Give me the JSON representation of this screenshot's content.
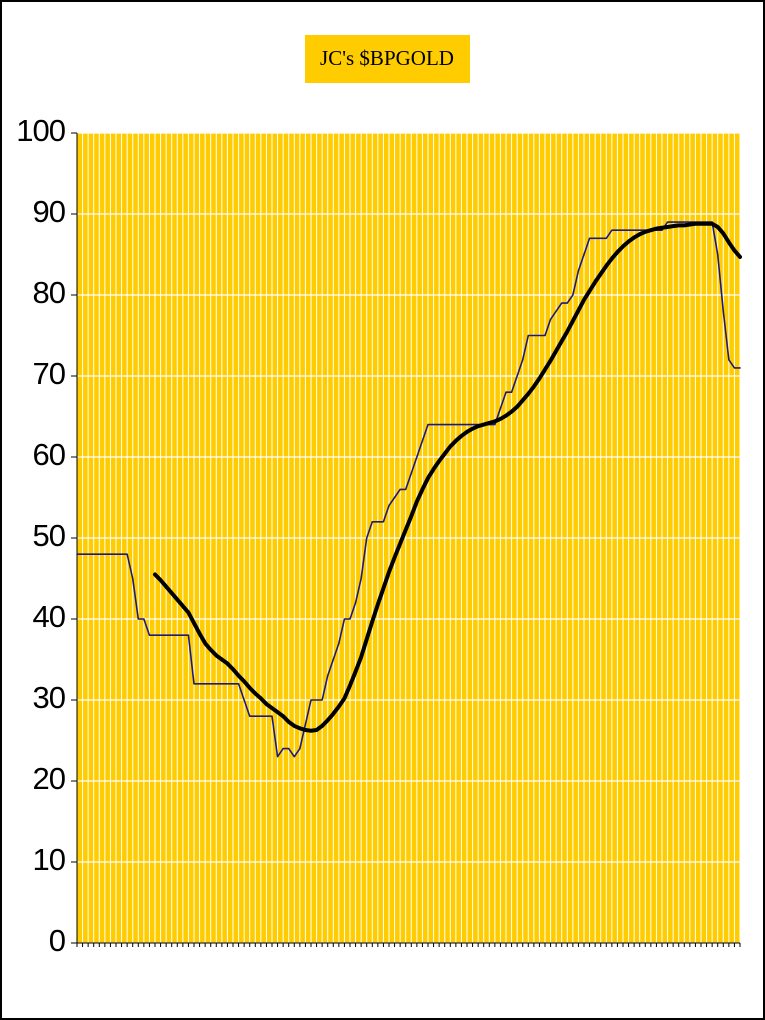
{
  "chart_data": {
    "type": "line",
    "title": "JC's $BPGOLD",
    "categories": [
      null,
      null,
      null,
      null,
      null,
      null,
      null,
      null,
      null,
      null,
      null,
      null,
      null,
      null,
      null,
      null,
      null,
      null,
      null,
      null,
      null,
      null,
      null,
      null,
      null,
      null,
      null,
      null,
      null,
      null,
      null,
      null,
      null,
      null,
      null,
      null,
      null,
      null,
      null,
      null,
      null,
      null,
      null,
      null,
      null,
      null,
      null,
      null,
      null,
      null,
      null,
      null,
      null,
      null,
      null,
      null,
      null,
      null,
      null,
      null,
      null,
      null,
      null,
      null,
      null,
      null,
      null,
      null,
      null,
      null,
      null,
      null,
      null,
      null,
      null,
      null,
      null,
      null,
      null,
      null,
      null,
      null,
      null,
      null,
      null,
      null,
      null,
      null,
      null,
      null,
      null,
      null,
      null,
      null,
      null,
      null,
      null,
      null,
      null,
      null,
      null,
      null,
      null,
      null,
      null,
      null,
      null,
      null,
      null,
      null,
      null,
      null,
      null,
      null,
      null,
      null,
      null,
      null,
      null,
      null
    ],
    "series": [
      {
        "color": "#1a1a80",
        "line_width": 1.6,
        "values": [
          48,
          48,
          48,
          48,
          48,
          48,
          48,
          48,
          48,
          48,
          45,
          40,
          40,
          38,
          38,
          38,
          38,
          38,
          38,
          38,
          38,
          32,
          32,
          32,
          32,
          32,
          32,
          32,
          32,
          32,
          30,
          28,
          28,
          28,
          28,
          28,
          23,
          24,
          24,
          23,
          24,
          27,
          30,
          30,
          30,
          33,
          35,
          37,
          40,
          40,
          42,
          45,
          50,
          52,
          52,
          52,
          54,
          55,
          56,
          56,
          58,
          60,
          62,
          64,
          64,
          64,
          64,
          64,
          64,
          64,
          64,
          64,
          64,
          64,
          64,
          64,
          66,
          68,
          68,
          70,
          72,
          75,
          75,
          75,
          75,
          77,
          78,
          79,
          79,
          80,
          83,
          85,
          87,
          87,
          87,
          87,
          88,
          88,
          88,
          88,
          88,
          88,
          88,
          88,
          88,
          88,
          89,
          89,
          89,
          89,
          89,
          89,
          89,
          89,
          89,
          85,
          78,
          72,
          71,
          71
        ]
      },
      {
        "color": "#000000",
        "line_width": 4,
        "values": [
          null,
          null,
          null,
          null,
          null,
          null,
          null,
          null,
          null,
          null,
          null,
          null,
          null,
          null,
          45.5,
          44.8,
          44,
          43.2,
          42.4,
          41.6,
          40.8,
          39.5,
          38.2,
          37,
          36.2,
          35.5,
          35,
          34.5,
          33.8,
          33,
          32.3,
          31.5,
          30.8,
          30.2,
          29.5,
          29,
          28.5,
          28,
          27.3,
          26.8,
          26.5,
          26.3,
          26.2,
          26.3,
          26.8,
          27.5,
          28.3,
          29.2,
          30.2,
          31.8,
          33.5,
          35.3,
          37.5,
          39.7,
          41.8,
          43.8,
          45.8,
          47.6,
          49.3,
          51,
          52.7,
          54.5,
          56,
          57.4,
          58.5,
          59.5,
          60.4,
          61.3,
          62,
          62.6,
          63.1,
          63.5,
          63.8,
          64,
          64.2,
          64.4,
          64.7,
          65.1,
          65.6,
          66.2,
          67,
          67.8,
          68.7,
          69.7,
          70.8,
          71.9,
          73.1,
          74.3,
          75.5,
          76.8,
          78.1,
          79.4,
          80.5,
          81.6,
          82.6,
          83.6,
          84.5,
          85.3,
          86,
          86.6,
          87.1,
          87.5,
          87.8,
          88,
          88.2,
          88.3,
          88.4,
          88.5,
          88.6,
          88.6,
          88.7,
          88.8,
          88.8,
          88.8,
          88.8,
          88.4,
          87.6,
          86.5,
          85.5,
          84.7
        ]
      }
    ],
    "ylim": [
      0,
      100
    ],
    "yticks": [
      0,
      10,
      20,
      30,
      40,
      50,
      60,
      70,
      80,
      90,
      100
    ],
    "grid": true,
    "background": "#ffcc00"
  }
}
